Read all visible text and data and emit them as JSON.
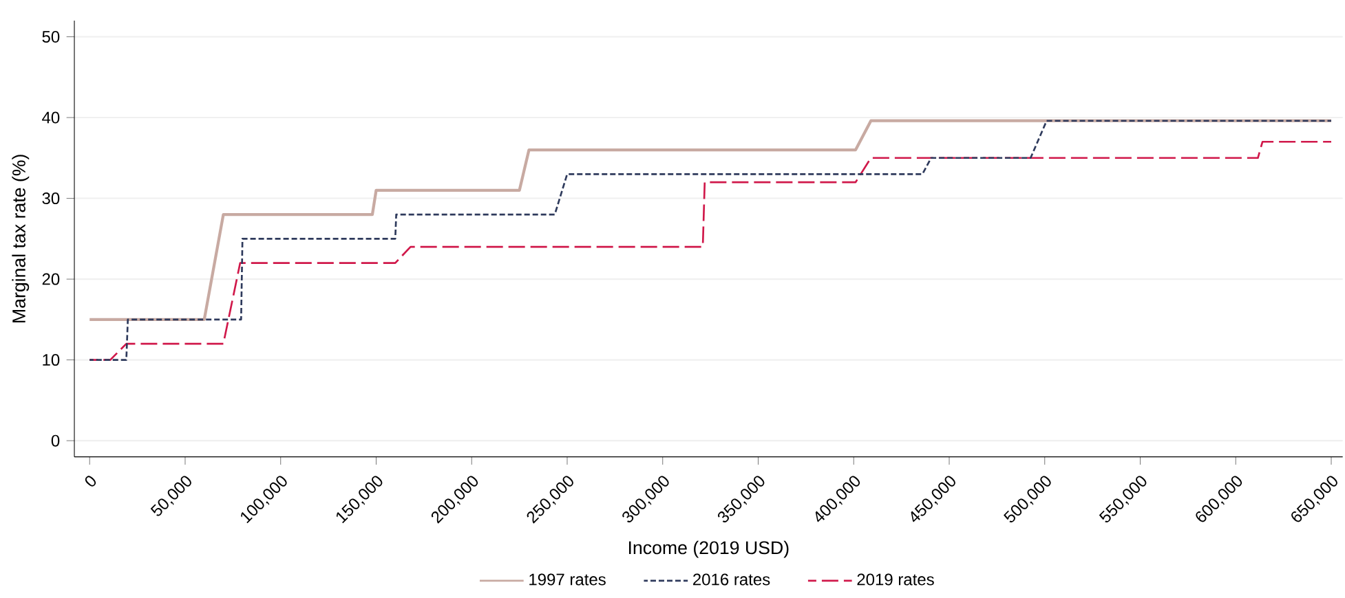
{
  "chart_data": {
    "type": "line",
    "xlabel": "Income (2019 USD)",
    "ylabel": "Marginal tax rate (%)",
    "xlim": [
      -8000,
      656000
    ],
    "ylim": [
      -2,
      52
    ],
    "xticks": [
      {
        "value": 0,
        "label": "0"
      },
      {
        "value": 50000,
        "label": "50,000"
      },
      {
        "value": 100000,
        "label": "100,000"
      },
      {
        "value": 150000,
        "label": "150,000"
      },
      {
        "value": 200000,
        "label": "200,000"
      },
      {
        "value": 250000,
        "label": "250,000"
      },
      {
        "value": 300000,
        "label": "300,000"
      },
      {
        "value": 350000,
        "label": "350,000"
      },
      {
        "value": 400000,
        "label": "400,000"
      },
      {
        "value": 450000,
        "label": "450,000"
      },
      {
        "value": 500000,
        "label": "500,000"
      },
      {
        "value": 550000,
        "label": "550,000"
      },
      {
        "value": 600000,
        "label": "600,000"
      },
      {
        "value": 650000,
        "label": "650,000"
      }
    ],
    "yticks": [
      0,
      10,
      20,
      30,
      40,
      50
    ],
    "grid": "y",
    "legend": "bottom",
    "marker": "none",
    "series": [
      {
        "name": "1997 rates",
        "color": "#c8aaa2",
        "line_style": "solid",
        "x": [
          0,
          60000,
          70000,
          148000,
          150000,
          225000,
          230000,
          401000,
          409000,
          650000
        ],
        "values": [
          15,
          15,
          28,
          28,
          31,
          31,
          36,
          36,
          39.6,
          39.6
        ]
      },
      {
        "name": "2016 rates",
        "color": "#2e3a5c",
        "line_style": "dashed",
        "x": [
          0,
          19200,
          20000,
          79300,
          80000,
          160000,
          160500,
          243500,
          250000,
          436000,
          440500,
          492600,
          501000,
          650000
        ],
        "values": [
          10,
          10,
          15,
          15,
          25,
          25,
          28,
          28,
          33,
          33,
          35,
          35,
          39.6,
          39.6
        ]
      },
      {
        "name": "2019 rates",
        "color": "#d0184a",
        "line_style": "longdashed",
        "x": [
          0,
          10800,
          19200,
          70000,
          78800,
          160000,
          168000,
          321000,
          322000,
          401000,
          409000,
          611600,
          614000,
          650000
        ],
        "values": [
          10,
          10,
          12,
          12,
          22,
          22,
          24,
          24,
          32,
          32,
          35,
          35,
          37,
          37
        ]
      }
    ]
  }
}
